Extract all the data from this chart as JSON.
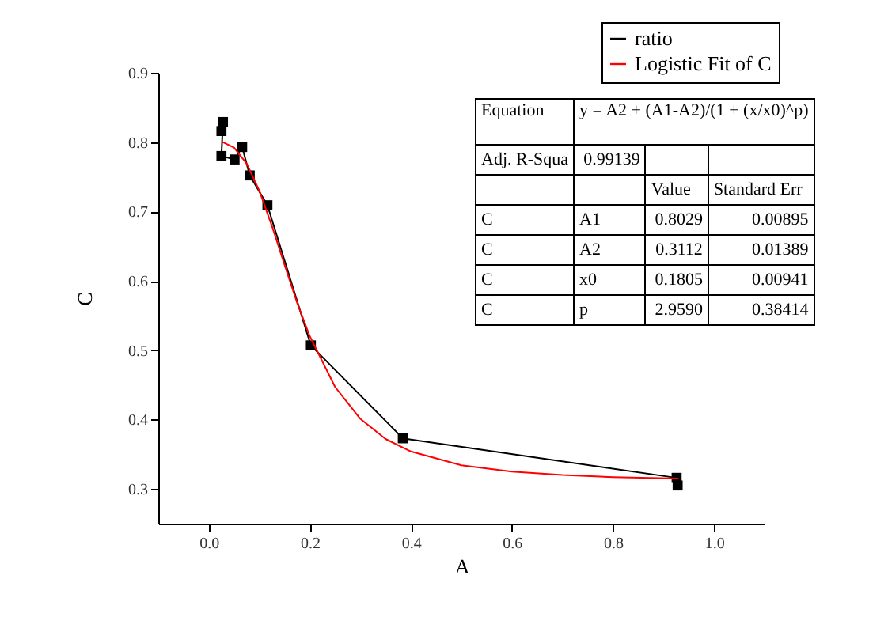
{
  "chart_data": {
    "type": "line",
    "xlabel": "A",
    "ylabel": "C",
    "xlim": [
      -0.1,
      1.1
    ],
    "ylim": [
      0.25,
      0.9
    ],
    "xticks": [
      {
        "value": 0,
        "label": "0.0"
      },
      0.2,
      0.4,
      0.6,
      0.8,
      {
        "value": 1,
        "label": "1.0"
      }
    ],
    "yticks": [
      0.3,
      0.4,
      0.5,
      0.6,
      0.7,
      0.8,
      0.9
    ],
    "legend": "top right",
    "grid": false,
    "line_style": "solid",
    "series": [
      {
        "name": "ratio",
        "color": "#000000",
        "marker": "square",
        "x": [
          0.025,
          0.028,
          0.025,
          0.051,
          0.066,
          0.081,
          0.116,
          0.202,
          0.384,
          0.926,
          0.928
        ],
        "values": [
          0.816,
          0.829,
          0.78,
          0.775,
          0.793,
          0.752,
          0.709,
          0.507,
          0.373,
          0.316,
          0.305
        ]
      },
      {
        "name": "Logistic Fit of C",
        "color": "#ff0000",
        "marker": "none",
        "x": [
          0.025,
          0.05,
          0.075,
          0.1,
          0.125,
          0.15,
          0.175,
          0.2,
          0.25,
          0.3,
          0.35,
          0.4,
          0.5,
          0.6,
          0.7,
          0.8,
          0.93
        ],
        "values": [
          0.801,
          0.792,
          0.769,
          0.73,
          0.679,
          0.623,
          0.568,
          0.52,
          0.447,
          0.401,
          0.372,
          0.354,
          0.334,
          0.325,
          0.32,
          0.317,
          0.315
        ]
      }
    ],
    "annotations": [
      "Equation",
      "y = A2 + (A1-A2)/(1 + (x/x0)^p)",
      "Adj. R-Squa",
      "0.99139",
      "Value",
      "Standard Err",
      "C",
      "A1",
      "0.8029",
      "0.00895",
      "C",
      "A2",
      "0.3112",
      "0.01389",
      "C",
      "x0",
      "0.1805",
      "0.00941",
      "C",
      "p",
      "2.9590",
      "0.38414"
    ]
  }
}
